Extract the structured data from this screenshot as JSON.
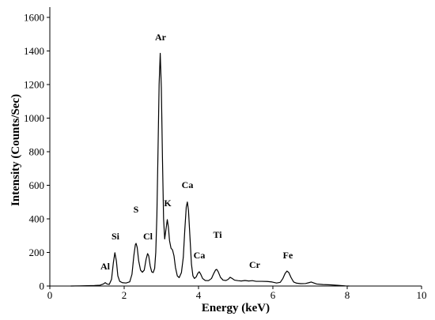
{
  "chart_data": {
    "type": "line",
    "xlabel": "Energy (keV)",
    "ylabel": "Intensity (Counts/Sec)",
    "xlim": [
      0,
      10
    ],
    "ylim": [
      0,
      1660
    ],
    "xticks": [
      0,
      2,
      4,
      6,
      8,
      10
    ],
    "yticks": [
      0,
      200,
      400,
      600,
      800,
      1000,
      1200,
      1400,
      1600
    ],
    "grid": false,
    "legend": false,
    "series": [
      {
        "color": "#000000",
        "x": [
          0.57,
          0.8,
          1.0,
          1.2,
          1.35,
          1.44,
          1.49,
          1.54,
          1.6,
          1.66,
          1.71,
          1.75,
          1.79,
          1.83,
          1.88,
          1.95,
          2.05,
          2.15,
          2.21,
          2.26,
          2.3,
          2.32,
          2.35,
          2.39,
          2.44,
          2.49,
          2.54,
          2.59,
          2.63,
          2.66,
          2.7,
          2.74,
          2.78,
          2.82,
          2.85,
          2.88,
          2.91,
          2.94,
          2.97,
          3.0,
          3.03,
          3.06,
          3.09,
          3.12,
          3.16,
          3.19,
          3.22,
          3.26,
          3.3,
          3.34,
          3.38,
          3.43,
          3.48,
          3.54,
          3.59,
          3.63,
          3.67,
          3.7,
          3.73,
          3.77,
          3.81,
          3.85,
          3.89,
          3.94,
          3.98,
          4.02,
          4.06,
          4.11,
          4.18,
          4.27,
          4.35,
          4.41,
          4.46,
          4.49,
          4.53,
          4.59,
          4.66,
          4.74,
          4.8,
          4.85,
          4.9,
          4.97,
          5.06,
          5.15,
          5.25,
          5.35,
          5.45,
          5.55,
          5.7,
          5.85,
          5.98,
          6.1,
          6.2,
          6.27,
          6.33,
          6.38,
          6.43,
          6.49,
          6.56,
          6.64,
          6.75,
          6.88,
          6.97,
          7.03,
          7.09,
          7.18,
          7.35,
          7.55,
          7.75,
          7.95,
          8.05
        ],
        "y": [
          0,
          1,
          2,
          3,
          5,
          12,
          20,
          12,
          10,
          40,
          140,
          198,
          150,
          60,
          28,
          20,
          18,
          25,
          70,
          180,
          245,
          254,
          230,
          150,
          95,
          82,
          95,
          160,
          193,
          180,
          120,
          85,
          80,
          105,
          200,
          420,
          800,
          1200,
          1385,
          1180,
          760,
          400,
          280,
          330,
          395,
          350,
          270,
          225,
          215,
          180,
          110,
          60,
          50,
          80,
          170,
          330,
          470,
          500,
          450,
          290,
          130,
          60,
          45,
          55,
          75,
          85,
          70,
          45,
          33,
          32,
          45,
          75,
          96,
          99,
          85,
          52,
          35,
          33,
          40,
          52,
          46,
          35,
          32,
          30,
          33,
          30,
          32,
          28,
          28,
          27,
          24,
          18,
          22,
          45,
          75,
          89,
          80,
          50,
          24,
          17,
          14,
          15,
          20,
          24,
          19,
          12,
          9,
          7,
          4,
          1,
          0
        ]
      }
    ],
    "annotations": [
      "Al",
      "Si",
      "S",
      "Cl",
      "Ar",
      "K",
      "Ca",
      "Ti",
      "Ca",
      "Cr",
      "Fe"
    ]
  }
}
